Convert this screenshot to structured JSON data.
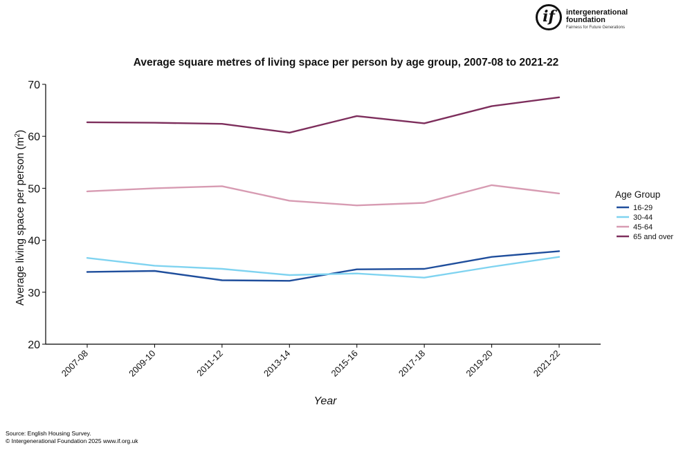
{
  "logo": {
    "name_line1": "intergenerational",
    "name_line2": "foundation",
    "tagline": "Fairness for Future Generations",
    "mark": "if"
  },
  "footer": {
    "source": "Source: English Housing Survey.",
    "copyright": "© Intergenerational Foundation 2025 www.if.org.uk"
  },
  "chart_data": {
    "type": "line",
    "title": "Average square metres of living space per person by age group, 2007-08 to 2021-22",
    "xlabel": "Year",
    "ylabel": "Average living space per person (m",
    "ylabel_sup": "2",
    "ylabel_end": ")",
    "categories": [
      "2007-08",
      "2009-10",
      "2011-12",
      "2013-14",
      "2015-16",
      "2017-18",
      "2019-20",
      "2021-22"
    ],
    "ylim": [
      20,
      70
    ],
    "yticks": [
      20,
      30,
      40,
      50,
      60,
      70
    ],
    "legend_title": "Age Group",
    "legend_position": "right",
    "grid": false,
    "series": [
      {
        "name": "16-29",
        "color": "#1f4e9c",
        "values": [
          33.9,
          34.1,
          32.3,
          32.2,
          34.4,
          34.5,
          36.8,
          37.9
        ]
      },
      {
        "name": "30-44",
        "color": "#7fd3f0",
        "values": [
          36.6,
          35.1,
          34.5,
          33.3,
          33.6,
          32.8,
          34.9,
          36.8
        ]
      },
      {
        "name": "45-64",
        "color": "#d79bb2",
        "values": [
          49.4,
          50.0,
          50.4,
          47.6,
          46.7,
          47.2,
          50.6,
          49.0
        ]
      },
      {
        "name": "65 and over",
        "color": "#7d2e5c",
        "values": [
          62.7,
          62.6,
          62.4,
          60.7,
          63.9,
          62.5,
          65.8,
          67.5
        ]
      }
    ]
  }
}
